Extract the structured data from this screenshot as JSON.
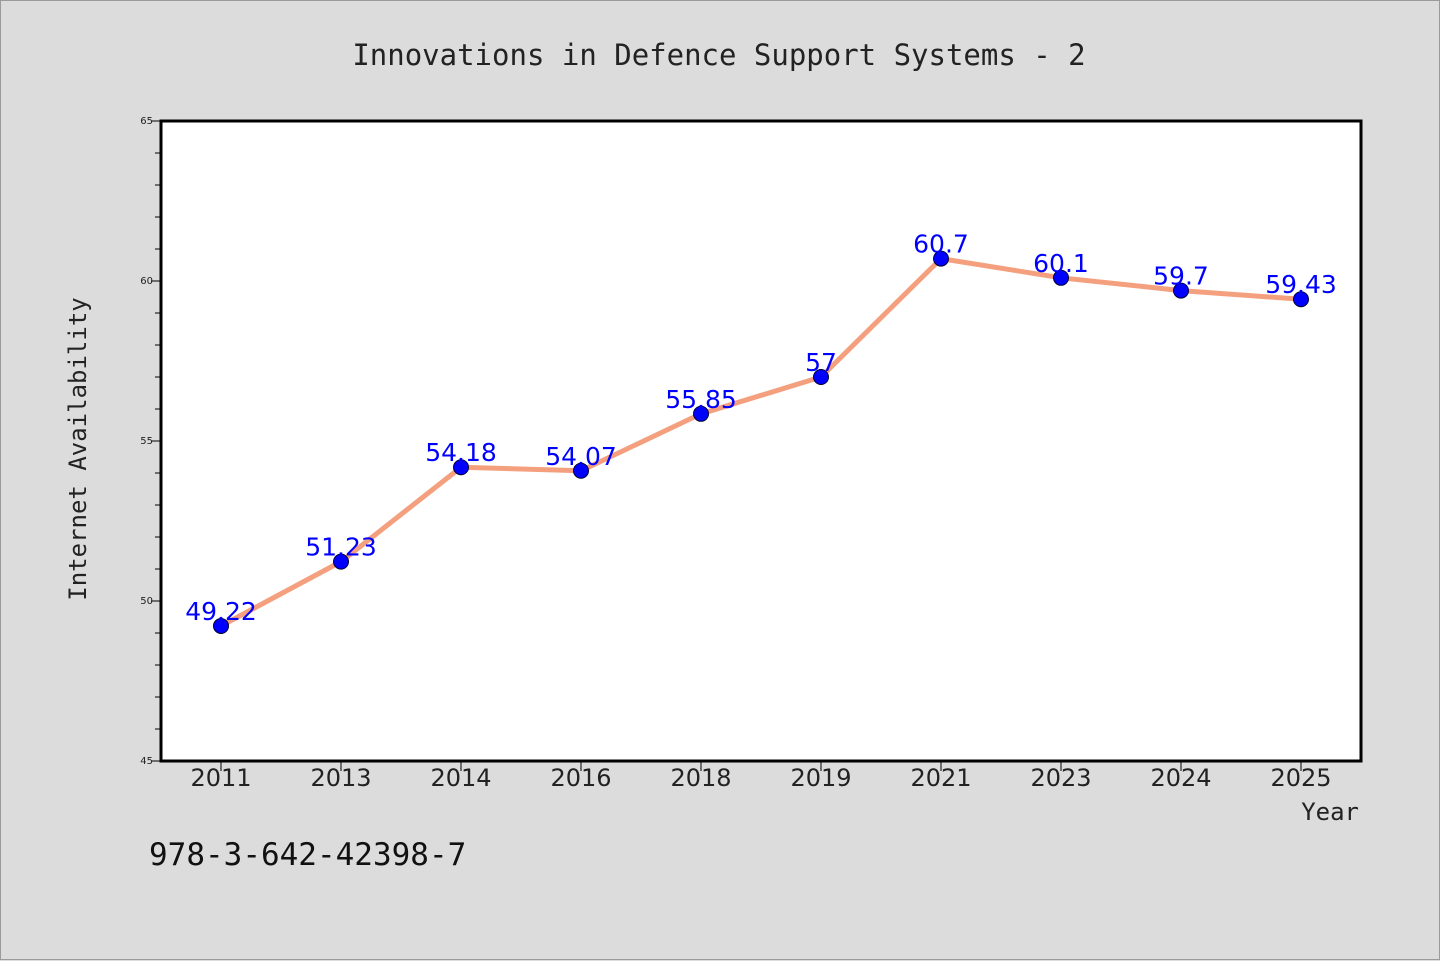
{
  "chart_data": {
    "type": "line",
    "title": "Innovations in Defence Support Systems - 2",
    "xlabel": "Year",
    "ylabel": "Internet Availability",
    "categories": [
      "2011",
      "2013",
      "2014",
      "2016",
      "2018",
      "2019",
      "2021",
      "2023",
      "2024",
      "2025"
    ],
    "series": [
      {
        "values": [
          49.22,
          51.23,
          54.18,
          54.07,
          55.85,
          57,
          60.7,
          60.1,
          59.7,
          59.43
        ],
        "data_labels": [
          "49.22",
          "51.23",
          "54.18",
          "54.07",
          "55.85",
          "57",
          "60.7",
          "60.1",
          "59.7",
          "59.43"
        ],
        "line_color": "#f4a07e",
        "marker_color": "#0000ff",
        "label_color": "#0000ff"
      }
    ],
    "ylim": [
      45,
      65
    ],
    "yticks": [
      "45",
      "50",
      "55",
      "60",
      "65"
    ],
    "grid": false,
    "legend": "none"
  },
  "footer_text": "978-3-642-42398-7",
  "colors": {
    "background": "#dcdcdc",
    "plot_background": "#ffffff",
    "axis": "#000000"
  }
}
